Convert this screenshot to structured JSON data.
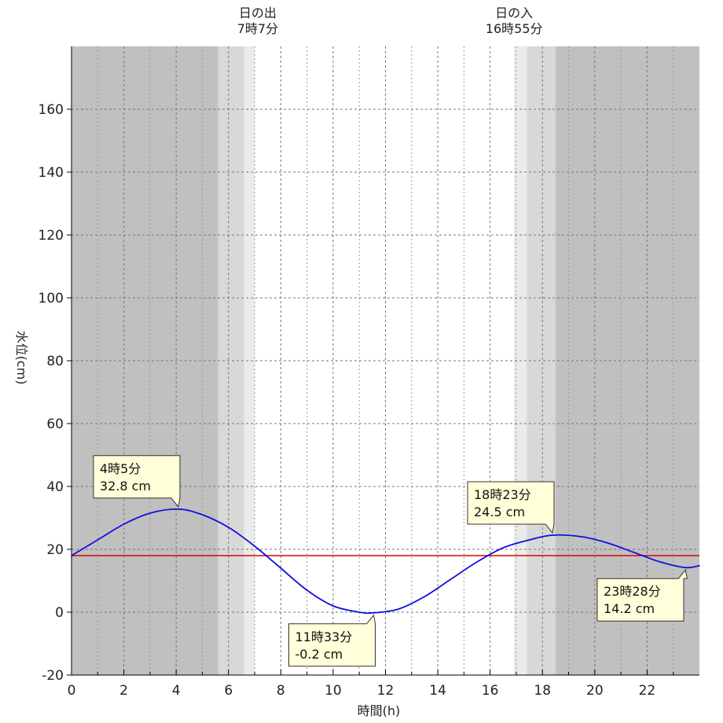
{
  "chart_data": {
    "type": "line",
    "xlabel": "時間(h)",
    "ylabel": "水位(cm)",
    "xlim": [
      0,
      24
    ],
    "ylim": [
      -20,
      180
    ],
    "x_ticks": [
      0,
      2,
      4,
      6,
      8,
      10,
      12,
      14,
      16,
      18,
      20,
      22
    ],
    "y_ticks": [
      -20,
      0,
      20,
      40,
      60,
      80,
      100,
      120,
      140,
      160
    ],
    "grid": true,
    "series": [
      {
        "color": "#1010dd",
        "x": [
          0,
          1,
          2,
          3,
          4.083,
          5,
          6,
          7,
          8,
          9,
          10,
          11,
          11.55,
          12.5,
          13.5,
          14.5,
          15.5,
          16.5,
          17.5,
          18.383,
          19.5,
          20.5,
          21.5,
          22.5,
          23.467,
          24
        ],
        "y": [
          18,
          23,
          28,
          31.5,
          32.8,
          31,
          27,
          21,
          14,
          7,
          2,
          0,
          -0.2,
          1,
          5,
          10.5,
          16,
          20.5,
          23,
          24.5,
          24,
          22,
          19,
          16,
          14.2,
          14.8
        ]
      }
    ],
    "reference_line": {
      "value": 18,
      "color": "#dd0000"
    },
    "background_bands": [
      {
        "from": 0,
        "to": 5.6,
        "color": "#c0c0c0"
      },
      {
        "from": 5.6,
        "to": 6.6,
        "color": "#d8d8d8"
      },
      {
        "from": 6.6,
        "to": 7.0,
        "color": "#ebebeb"
      },
      {
        "from": 7.0,
        "to": 16.9,
        "color": "#ffffff"
      },
      {
        "from": 16.9,
        "to": 17.4,
        "color": "#ebebeb"
      },
      {
        "from": 17.4,
        "to": 18.5,
        "color": "#d8d8d8"
      },
      {
        "from": 18.5,
        "to": 24,
        "color": "#c0c0c0"
      }
    ],
    "sun_events": [
      {
        "x": 7.117,
        "line1": "日の出",
        "line2": "7時7分"
      },
      {
        "x": 16.917,
        "line1": "日の入",
        "line2": "16時55分"
      }
    ],
    "annotations": [
      {
        "x": 4.083,
        "y": 32.8,
        "time": "4時5分",
        "level": "32.8 cm",
        "position": "above"
      },
      {
        "x": 11.55,
        "y": -0.2,
        "time": "11時33分",
        "level": "-0.2 cm",
        "position": "below"
      },
      {
        "x": 18.383,
        "y": 24.5,
        "time": "18時23分",
        "level": "24.5 cm",
        "position": "above"
      },
      {
        "x": 23.467,
        "y": 14.2,
        "time": "23時28分",
        "level": "14.2 cm",
        "position": "below"
      }
    ]
  }
}
